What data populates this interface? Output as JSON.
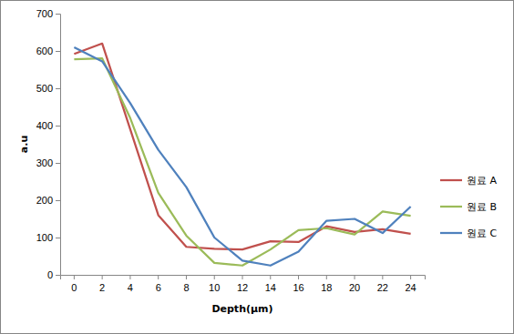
{
  "chart_data": {
    "type": "line",
    "x_label": "Depth(μm)",
    "y_label": "a.u",
    "categories": [
      0,
      2,
      4,
      6,
      8,
      10,
      12,
      14,
      16,
      18,
      20,
      22,
      24
    ],
    "series": [
      {
        "name": "원료 A",
        "color": "#c0504d",
        "values": [
          592,
          620,
          390,
          160,
          75,
          70,
          68,
          90,
          88,
          130,
          115,
          122,
          110
        ]
      },
      {
        "name": "원료 B",
        "color": "#9bbb59",
        "values": [
          578,
          580,
          420,
          220,
          105,
          32,
          25,
          68,
          120,
          125,
          108,
          170,
          158
        ]
      },
      {
        "name": "원료 C",
        "color": "#4f81bd",
        "values": [
          610,
          572,
          460,
          335,
          235,
          100,
          38,
          25,
          62,
          145,
          150,
          112,
          183
        ]
      }
    ],
    "ylim": [
      0,
      700
    ],
    "yticks": [
      0,
      100,
      200,
      300,
      400,
      500,
      600,
      700
    ],
    "grid": false,
    "legend": "right"
  }
}
